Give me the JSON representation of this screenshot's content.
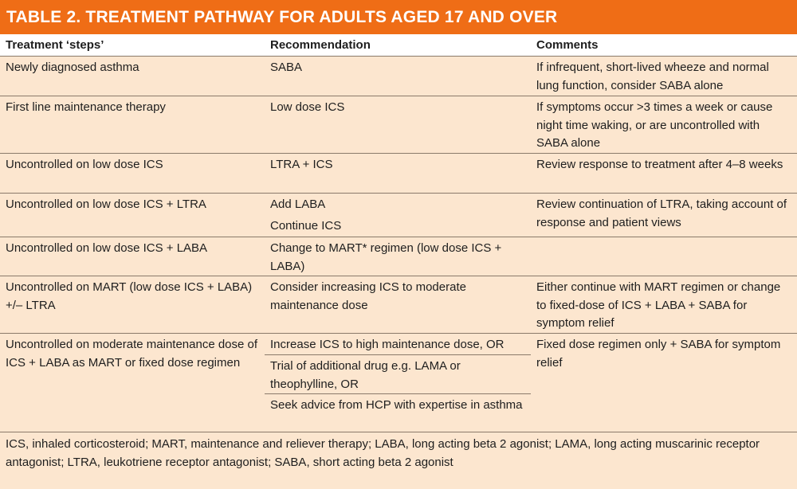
{
  "title": "TABLE 2. TREATMENT PATHWAY FOR ADULTS AGED 17 AND OVER",
  "headers": {
    "step": "Treatment ‘steps’",
    "recommendation": "Recommendation",
    "comments": "Comments"
  },
  "rows": [
    {
      "step": "Newly diagnosed asthma",
      "recommendation": [
        "SABA"
      ],
      "comments": "If infrequent, short-lived wheeze and normal lung function, consider SABA alone"
    },
    {
      "step": "First line maintenance therapy",
      "recommendation": [
        "Low dose ICS"
      ],
      "comments": "If symptoms occur >3 times a week or cause night time waking, or are uncontrolled with SABA alone"
    },
    {
      "step": "Uncontrolled on low dose ICS",
      "recommendation": [
        "LTRA + ICS"
      ],
      "comments": "Review response to treatment after 4–8 weeks"
    },
    {
      "step": "Uncontrolled on low dose ICS + LTRA",
      "recommendation": [
        "Add LABA",
        "Continue ICS"
      ],
      "comments": "Review continuation of LTRA, taking account of response and patient views"
    },
    {
      "step": "Uncontrolled on low dose ICS + LABA",
      "recommendation": [
        "Change to MART* regimen (low dose ICS + LABA)"
      ],
      "comments": ""
    },
    {
      "step": "Uncontrolled on MART (low dose ICS + LABA) +/– LTRA",
      "recommendation": [
        "Consider increasing ICS to moderate maintenance dose"
      ],
      "comments": "Either continue with MART regimen or change to fixed-dose of ICS + LABA + SABA for symptom relief"
    },
    {
      "step": "Uncontrolled on moderate maintenance dose of ICS + LABA as MART or fixed dose regimen",
      "recommendation": [
        "Increase ICS to high maintenance dose, OR",
        "Trial of additional drug e.g. LAMA or theophylline, OR",
        "Seek advice from HCP with expertise in asthma"
      ],
      "comments": "Fixed dose regimen only + SABA for symptom relief"
    }
  ],
  "footnote": "ICS, inhaled corticosteroid; MART, maintenance and reliever therapy; LABA, long acting beta 2 agonist; LAMA, long acting muscarinic receptor antagonist; LTRA, leukotriene receptor antagonist; SABA, short acting beta 2 agonist",
  "colors": {
    "title_bar": "#ef6d16",
    "table_bg": "#fce6cf",
    "header_bg": "#ffffff",
    "rule": "#8a7a6a"
  }
}
